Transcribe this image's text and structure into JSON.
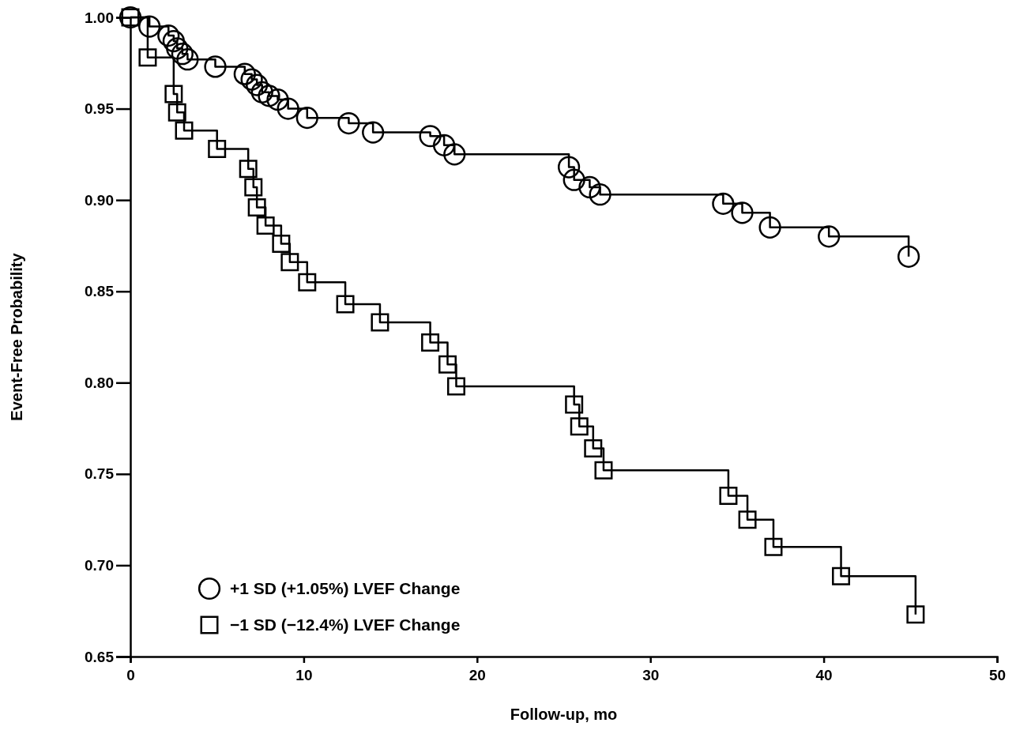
{
  "chart_data": {
    "type": "step",
    "xlabel": "Follow-up, mo",
    "ylabel": "Event-Free Probability",
    "xlim": [
      0,
      50
    ],
    "xticks": [
      0,
      10,
      20,
      30,
      40,
      50
    ],
    "ylim": [
      0.65,
      1.0
    ],
    "yticks": [
      {
        "value": 0.65,
        "label": "0.65"
      },
      {
        "value": 0.7,
        "label": "0.70"
      },
      {
        "value": 0.75,
        "label": "0.75"
      },
      {
        "value": 0.8,
        "label": "0.80"
      },
      {
        "value": 0.85,
        "label": "0.85"
      },
      {
        "value": 0.9,
        "label": "0.90"
      },
      {
        "value": 0.95,
        "label": "0.95"
      },
      {
        "value": 1.0,
        "label": "1.00"
      }
    ],
    "grid": false,
    "legend": "bottom left",
    "line_style": "solid",
    "series": [
      {
        "name": "+1 SD (+1.05%) LVEF Change",
        "color": "#000000",
        "marker": "circle",
        "x": [
          0,
          1.1,
          2.2,
          2.5,
          2.7,
          3,
          3.3,
          4.9,
          6.6,
          7,
          7.3,
          7.6,
          8,
          8.5,
          9.1,
          10.2,
          12.6,
          14,
          17.3,
          18.1,
          18.7,
          25.3,
          25.6,
          26.5,
          27.1,
          34.2,
          35.3,
          36.9,
          40.3,
          44.9
        ],
        "values": [
          1.0,
          0.995,
          0.99,
          0.987,
          0.983,
          0.98,
          0.977,
          0.973,
          0.969,
          0.966,
          0.963,
          0.959,
          0.957,
          0.955,
          0.95,
          0.945,
          0.942,
          0.937,
          0.935,
          0.93,
          0.925,
          0.918,
          0.911,
          0.907,
          0.903,
          0.898,
          0.893,
          0.885,
          0.88,
          0.869
        ]
      },
      {
        "name": "−1 SD (−12.4%) LVEF Change",
        "color": "#000000",
        "marker": "square",
        "x": [
          0,
          1.0,
          2.5,
          2.7,
          3.1,
          5,
          6.8,
          7.1,
          7.3,
          7.8,
          8.7,
          9.2,
          10.2,
          12.4,
          14.4,
          17.3,
          18.3,
          18.8,
          25.6,
          25.9,
          26.7,
          27.3,
          34.5,
          35.6,
          37.1,
          41,
          45.3
        ],
        "values": [
          1.0,
          0.978,
          0.958,
          0.948,
          0.938,
          0.928,
          0.917,
          0.907,
          0.896,
          0.886,
          0.876,
          0.866,
          0.855,
          0.843,
          0.833,
          0.822,
          0.81,
          0.798,
          0.788,
          0.776,
          0.764,
          0.752,
          0.738,
          0.725,
          0.71,
          0.694,
          0.673
        ]
      }
    ]
  }
}
